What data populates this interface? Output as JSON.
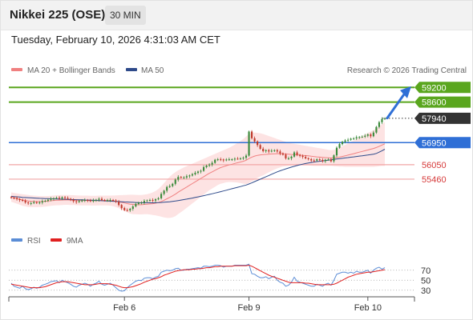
{
  "header": {
    "title": "Nikkei 225 (OSE)",
    "timeframe": "30 MIN"
  },
  "timestamp": "Tuesday, February 10, 2026 4:31:03 AM CET",
  "source": "Research © 2026 Trading Central",
  "colors": {
    "support_resistance": "#5aa61e",
    "pivot": "#2f6fd6",
    "level_line": "#f2a6a6",
    "level_text": "#d63a3a",
    "bollinger_fill": "#fde3e3",
    "ma20": "#f08080",
    "ma50": "#2e4a8a",
    "candle_up": "#3a8a3a",
    "candle_down": "#c0392b",
    "rsi": "#5b8dd6",
    "rsi_ma": "#e02020",
    "arrow": "#2f6fd6",
    "last_price": "#333333"
  },
  "chart_data": [
    {
      "type": "line",
      "title": "",
      "legend": [
        {
          "name": "MA 20 + Bollinger Bands",
          "color": "#f08080"
        },
        {
          "name": "MA 50",
          "color": "#2e4a8a"
        }
      ],
      "legend_position": "top-left",
      "ylim": [
        53600,
        59600
      ],
      "x_ticks": [
        {
          "label": "Feb 6",
          "index": 40
        },
        {
          "label": "Feb 9",
          "index": 84
        },
        {
          "label": "Feb 10",
          "index": 126
        }
      ],
      "levels": [
        {
          "label": "59200",
          "value": 59200,
          "role": "resistance",
          "style": "green"
        },
        {
          "label": "58600",
          "value": 58600,
          "role": "resistance",
          "style": "green"
        },
        {
          "label": "57940",
          "value": 57940,
          "role": "last",
          "style": "dark"
        },
        {
          "label": "56950",
          "value": 56950,
          "role": "pivot",
          "style": "blue"
        },
        {
          "label": "56050",
          "value": 56050,
          "role": "support",
          "style": "red"
        },
        {
          "label": "55460",
          "value": 55460,
          "role": "support",
          "style": "red"
        }
      ],
      "close": [
        54700,
        54690,
        54650,
        54610,
        54580,
        54510,
        54475,
        54485,
        54520,
        54500,
        54510,
        54560,
        54580,
        54620,
        54665,
        54680,
        54700,
        54670,
        54720,
        54690,
        54660,
        54620,
        54560,
        54530,
        54570,
        54590,
        54610,
        54600,
        54560,
        54600,
        54620,
        54660,
        54610,
        54600,
        54605,
        54610,
        54590,
        54540,
        54410,
        54280,
        54200,
        54190,
        54250,
        54350,
        54450,
        54500,
        54505,
        54570,
        54590,
        54610,
        54590,
        54640,
        54680,
        54860,
        54990,
        55140,
        55180,
        55270,
        55440,
        55550,
        55520,
        55530,
        55580,
        55610,
        55660,
        55720,
        55770,
        55800,
        55950,
        56015,
        56055,
        56125,
        56250,
        56270,
        56260,
        56230,
        56260,
        56270,
        56270,
        56295,
        56290,
        56310,
        56335,
        56420,
        57400,
        57130,
        57000,
        56850,
        56700,
        56600,
        56640,
        56590,
        56620,
        56640,
        56590,
        56510,
        56460,
        56310,
        56310,
        56380,
        56550,
        56450,
        56410,
        56370,
        56310,
        56275,
        56225,
        56220,
        56270,
        56240,
        56195,
        56250,
        56260,
        56190,
        56430,
        56740,
        56890,
        56985,
        57040,
        57065,
        57110,
        57120,
        57170,
        57180,
        57190,
        57230,
        57285,
        57210,
        57360,
        57590,
        57780,
        57910,
        57940
      ],
      "ma20": [
        54730,
        54700,
        54670,
        54640,
        54610,
        54590,
        54570,
        54560,
        54555,
        54550,
        54550,
        54550,
        54555,
        54565,
        54580,
        54590,
        54600,
        54605,
        54610,
        54615,
        54615,
        54610,
        54605,
        54600,
        54595,
        54590,
        54590,
        54590,
        54585,
        54585,
        54585,
        54590,
        54590,
        54590,
        54590,
        54585,
        54575,
        54560,
        54540,
        54515,
        54490,
        54465,
        54440,
        54430,
        54425,
        54420,
        54420,
        54430,
        54440,
        54450,
        54460,
        54480,
        54510,
        54550,
        54600,
        54660,
        54720,
        54780,
        54850,
        54930,
        55000,
        55070,
        55140,
        55210,
        55280,
        55350,
        55420,
        55490,
        55560,
        55630,
        55700,
        55760,
        55820,
        55880,
        55930,
        55970,
        56010,
        56040,
        56070,
        56100,
        56130,
        56160,
        56190,
        56230,
        56300,
        56360,
        56400,
        56430,
        56450,
        56460,
        56470,
        56480,
        56490,
        56495,
        56500,
        56500,
        56495,
        56485,
        56475,
        56465,
        56460,
        56450,
        56440,
        56430,
        56420,
        56410,
        56395,
        56380,
        56370,
        56360,
        56350,
        56340,
        56330,
        56320,
        56325,
        56340,
        56360,
        56385,
        56410,
        56440,
        56470,
        56500,
        56530,
        56560,
        56590,
        56620,
        56650,
        56680,
        56710,
        56750,
        56800,
        56850,
        56900
      ],
      "bollinger_upper": [
        54920,
        54900,
        54880,
        54860,
        54845,
        54830,
        54815,
        54800,
        54790,
        54780,
        54775,
        54770,
        54770,
        54775,
        54785,
        54795,
        54805,
        54810,
        54815,
        54815,
        54815,
        54810,
        54805,
        54800,
        54795,
        54790,
        54790,
        54790,
        54785,
        54785,
        54785,
        54790,
        54790,
        54790,
        54790,
        54790,
        54795,
        54800,
        54805,
        54810,
        54815,
        54820,
        54825,
        54825,
        54820,
        54815,
        54815,
        54830,
        54850,
        54880,
        54920,
        54980,
        55060,
        55170,
        55300,
        55440,
        55560,
        55660,
        55750,
        55820,
        55880,
        55940,
        55990,
        56040,
        56090,
        56140,
        56190,
        56240,
        56290,
        56340,
        56390,
        56440,
        56490,
        56540,
        56590,
        56640,
        56690,
        56740,
        56800,
        56870,
        56940,
        57020,
        57100,
        57200,
        57300,
        57350,
        57360,
        57350,
        57330,
        57300,
        57260,
        57220,
        57180,
        57140,
        57100,
        57060,
        57020,
        56980,
        56950,
        56920,
        56900,
        56880,
        56860,
        56840,
        56820,
        56800,
        56780,
        56760,
        56740,
        56720,
        56700,
        56680,
        56660,
        56640,
        56660,
        56700,
        56750,
        56800,
        56860,
        56920,
        56980,
        57040,
        57100,
        57160,
        57220,
        57280,
        57340,
        57400,
        57460,
        57530,
        57610,
        57700,
        57800
      ],
      "bollinger_lower": [
        54540,
        54500,
        54460,
        54420,
        54375,
        54350,
        54325,
        54320,
        54320,
        54320,
        54325,
        54330,
        54340,
        54355,
        54375,
        54385,
        54395,
        54400,
        54405,
        54415,
        54415,
        54410,
        54405,
        54400,
        54395,
        54390,
        54390,
        54390,
        54385,
        54385,
        54385,
        54390,
        54390,
        54390,
        54390,
        54380,
        54355,
        54320,
        54275,
        54220,
        54165,
        54110,
        54055,
        54035,
        54030,
        54025,
        54025,
        54030,
        54030,
        54020,
        54000,
        53980,
        53960,
        53930,
        53900,
        53880,
        53880,
        53900,
        53950,
        54040,
        54120,
        54200,
        54290,
        54380,
        54470,
        54560,
        54650,
        54740,
        54830,
        54920,
        55010,
        55080,
        55150,
        55220,
        55270,
        55300,
        55330,
        55340,
        55340,
        55330,
        55320,
        55300,
        55280,
        55260,
        55300,
        55370,
        55440,
        55510,
        55570,
        55620,
        55680,
        55740,
        55800,
        55850,
        55900,
        55940,
        55970,
        55990,
        56000,
        56010,
        56020,
        56020,
        56020,
        56020,
        56020,
        56020,
        56010,
        56000,
        56000,
        56000,
        56000,
        56000,
        56000,
        56000,
        55990,
        55980,
        55970,
        55970,
        55960,
        55960,
        55960,
        55960,
        55960,
        55960,
        55960,
        55960,
        55960,
        55960,
        55960,
        55970,
        55990,
        56000,
        56000
      ],
      "ma50": [
        54760,
        54750,
        54740,
        54730,
        54720,
        54712,
        54705,
        54698,
        54692,
        54686,
        54680,
        54675,
        54670,
        54665,
        54660,
        54656,
        54652,
        54648,
        54644,
        54640,
        54636,
        54632,
        54628,
        54624,
        54620,
        54616,
        54612,
        54608,
        54604,
        54600,
        54594,
        54588,
        54582,
        54576,
        54570,
        54564,
        54558,
        54552,
        54546,
        54540,
        54534,
        54528,
        54522,
        54516,
        54510,
        54504,
        54500,
        54498,
        54497,
        54497,
        54498,
        54500,
        54504,
        54510,
        54518,
        54528,
        54540,
        54554,
        54570,
        54588,
        54606,
        54626,
        54646,
        54668,
        54690,
        54714,
        54738,
        54762,
        54788,
        54814,
        54840,
        54866,
        54894,
        54922,
        54950,
        54980,
        55010,
        55040,
        55070,
        55100,
        55130,
        55160,
        55190,
        55220,
        55262,
        55310,
        55360,
        55410,
        55460,
        55510,
        55560,
        55610,
        55660,
        55710,
        55760,
        55800,
        55840,
        55880,
        55915,
        55950,
        55985,
        56015,
        56045,
        56072,
        56098,
        56120,
        56140,
        56158,
        56175,
        56190,
        56205,
        56220,
        56235,
        56250,
        56265,
        56280,
        56295,
        56310,
        56325,
        56340,
        56355,
        56370,
        56385,
        56400,
        56415,
        56430,
        56445,
        56460,
        56480,
        56510,
        56560,
        56620,
        56680
      ]
    },
    {
      "type": "line",
      "title": "",
      "legend": [
        {
          "name": "RSI",
          "color": "#5b8dd6"
        },
        {
          "name": "9MA",
          "color": "#e02020"
        }
      ],
      "legend_position": "top-left",
      "ylim": [
        20,
        100
      ],
      "y_ticks": [
        30,
        50,
        70
      ],
      "rsi": [
        44,
        38,
        36,
        34,
        38,
        33,
        31,
        33,
        36,
        34,
        36,
        40,
        42,
        44,
        47,
        48,
        49,
        45,
        50,
        47,
        45,
        42,
        38,
        36,
        40,
        42,
        44,
        42,
        38,
        42,
        44,
        48,
        42,
        40,
        42,
        44,
        40,
        35,
        30,
        28,
        29,
        35,
        40,
        44,
        48,
        50,
        49,
        54,
        55,
        55,
        53,
        56,
        58,
        66,
        68,
        70,
        69,
        70,
        73,
        74,
        70,
        70,
        72,
        72,
        73,
        74,
        75,
        74,
        78,
        78,
        77,
        78,
        80,
        80,
        79,
        76,
        78,
        78,
        78,
        80,
        80,
        80,
        80,
        80,
        82,
        63,
        62,
        58,
        55,
        55,
        57,
        53,
        56,
        58,
        50,
        46,
        44,
        38,
        40,
        46,
        56,
        48,
        46,
        44,
        42,
        40,
        38,
        38,
        42,
        40,
        38,
        42,
        44,
        40,
        50,
        62,
        64,
        66,
        66,
        64,
        66,
        64,
        68,
        66,
        66,
        68,
        70,
        64,
        70,
        74,
        76,
        72,
        75
      ],
      "rsi_ma": [
        42,
        41,
        40,
        39,
        38,
        37,
        36,
        35,
        35,
        35,
        35,
        36,
        37,
        39,
        41,
        43,
        45,
        46,
        47,
        47,
        47,
        46,
        45,
        44,
        43,
        42,
        41,
        41,
        41,
        41,
        42,
        43,
        43,
        43,
        43,
        42,
        41,
        40,
        38,
        36,
        35,
        35,
        36,
        37,
        39,
        41,
        43,
        46,
        48,
        50,
        52,
        53,
        55,
        57,
        60,
        62,
        64,
        66,
        68,
        69,
        70,
        71,
        71,
        71,
        72,
        72,
        73,
        73,
        74,
        75,
        75,
        76,
        77,
        77,
        78,
        78,
        78,
        78,
        78,
        79,
        79,
        79,
        79,
        79,
        80,
        78,
        75,
        72,
        69,
        66,
        63,
        60,
        58,
        56,
        54,
        52,
        50,
        48,
        46,
        45,
        45,
        45,
        45,
        45,
        44,
        44,
        43,
        42,
        41,
        41,
        41,
        41,
        41,
        41,
        42,
        44,
        47,
        50,
        53,
        56,
        58,
        60,
        62,
        63,
        64,
        65,
        66,
        66,
        67,
        68,
        69,
        70,
        71
      ]
    }
  ]
}
